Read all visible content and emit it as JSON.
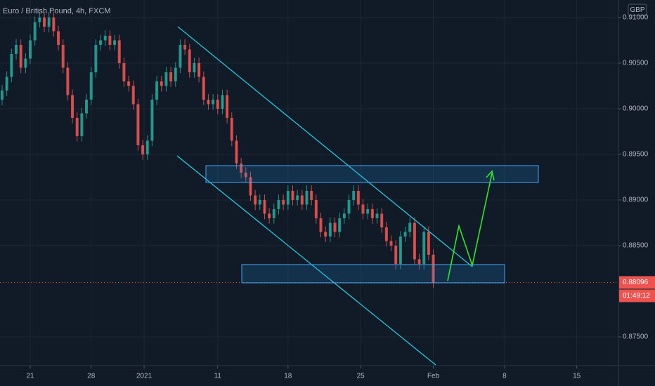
{
  "chart_data": {
    "type": "candlestick",
    "title": "Euro / British Pound, 4h, FXCM",
    "currency": "GBP",
    "countdown": "01:49:12",
    "up_color": "#26a69a",
    "down_color": "#ef5350",
    "open": [
      0.901,
      0.902,
      0.9035,
      0.906,
      0.907,
      0.9045,
      0.9055,
      0.9075,
      0.9095,
      0.91,
      0.909,
      0.91,
      0.9085,
      0.907,
      0.9045,
      0.9015,
      0.899,
      0.897,
      0.8995,
      0.901,
      0.904,
      0.907,
      0.9075,
      0.908,
      0.907,
      0.9075,
      0.905,
      0.903,
      0.9025,
      0.9005,
      0.896,
      0.895,
      0.8965,
      0.901,
      0.903,
      0.9025,
      0.904,
      0.903,
      0.9045,
      0.907,
      0.9065,
      0.904,
      0.905,
      0.9035,
      0.901,
      0.9005,
      0.901,
      0.9,
      0.9015,
      0.899,
      0.8965,
      0.894,
      0.893,
      0.8925,
      0.8905,
      0.8895,
      0.89,
      0.8885,
      0.888,
      0.889,
      0.89,
      0.8895,
      0.891,
      0.89,
      0.8905,
      0.8895,
      0.891,
      0.89,
      0.888,
      0.8865,
      0.886,
      0.8875,
      0.8865,
      0.888,
      0.8885,
      0.89,
      0.891,
      0.8895,
      0.8885,
      0.889,
      0.888,
      0.8885,
      0.887,
      0.8855,
      0.885,
      0.883,
      0.886,
      0.8865,
      0.8875,
      0.8835,
      0.883,
      0.8865,
      0.884
    ],
    "high": [
      0.9026,
      0.9041,
      0.9066,
      0.9076,
      0.9076,
      0.9061,
      0.9081,
      0.9101,
      0.9106,
      0.9106,
      0.9106,
      0.9106,
      0.9091,
      0.9076,
      0.9051,
      0.9021,
      0.8996,
      0.9001,
      0.9016,
      0.9046,
      0.9076,
      0.9081,
      0.9086,
      0.9086,
      0.9081,
      0.9081,
      0.9056,
      0.9036,
      0.9031,
      0.9011,
      0.8966,
      0.8971,
      0.9016,
      0.9036,
      0.9036,
      0.9046,
      0.9046,
      0.9051,
      0.9076,
      0.9076,
      0.9071,
      0.9056,
      0.9056,
      0.9041,
      0.9016,
      0.9016,
      0.9016,
      0.9021,
      0.9021,
      0.8996,
      0.8971,
      0.8946,
      0.8936,
      0.8931,
      0.8911,
      0.8906,
      0.8906,
      0.8891,
      0.8896,
      0.8906,
      0.8906,
      0.8916,
      0.8916,
      0.8911,
      0.8911,
      0.8916,
      0.8916,
      0.8906,
      0.8886,
      0.8871,
      0.8881,
      0.8881,
      0.8886,
      0.8891,
      0.8906,
      0.8916,
      0.8916,
      0.8901,
      0.8896,
      0.8896,
      0.8891,
      0.8891,
      0.8876,
      0.8861,
      0.8856,
      0.8866,
      0.8871,
      0.8881,
      0.8881,
      0.8841,
      0.8871,
      0.8871,
      0.8846
    ],
    "low": [
      0.9004,
      0.9014,
      0.9029,
      0.9054,
      0.9039,
      0.9039,
      0.9049,
      0.9069,
      0.9089,
      0.9084,
      0.9084,
      0.9079,
      0.9064,
      0.9039,
      0.9009,
      0.8984,
      0.8964,
      0.8964,
      0.8989,
      0.9004,
      0.9034,
      0.9064,
      0.9069,
      0.9064,
      0.9064,
      0.9044,
      0.9024,
      0.9019,
      0.8999,
      0.8954,
      0.8944,
      0.8944,
      0.8959,
      0.9004,
      0.9019,
      0.9019,
      0.9024,
      0.9024,
      0.9039,
      0.9059,
      0.9034,
      0.9034,
      0.9029,
      0.9004,
      0.8999,
      0.8999,
      0.8994,
      0.8994,
      0.8984,
      0.8959,
      0.8934,
      0.8924,
      0.8919,
      0.8899,
      0.8889,
      0.8889,
      0.8879,
      0.8874,
      0.8874,
      0.8884,
      0.8889,
      0.8889,
      0.8894,
      0.8894,
      0.8889,
      0.8889,
      0.8894,
      0.8874,
      0.8859,
      0.8854,
      0.8854,
      0.8859,
      0.8859,
      0.8874,
      0.8879,
      0.8894,
      0.8889,
      0.8879,
      0.8879,
      0.8874,
      0.8874,
      0.8864,
      0.8849,
      0.8844,
      0.8824,
      0.8824,
      0.8854,
      0.8859,
      0.8829,
      0.8824,
      0.8824,
      0.8834,
      0.88036
    ],
    "close": [
      0.902,
      0.9035,
      0.906,
      0.907,
      0.9045,
      0.9055,
      0.9075,
      0.9095,
      0.91,
      0.909,
      0.91,
      0.9085,
      0.907,
      0.9045,
      0.9015,
      0.899,
      0.897,
      0.8995,
      0.901,
      0.904,
      0.907,
      0.9075,
      0.908,
      0.907,
      0.9075,
      0.905,
      0.903,
      0.9025,
      0.9005,
      0.896,
      0.895,
      0.8965,
      0.901,
      0.903,
      0.9025,
      0.904,
      0.903,
      0.9045,
      0.907,
      0.9065,
      0.904,
      0.905,
      0.9035,
      0.901,
      0.9005,
      0.901,
      0.9,
      0.9015,
      0.899,
      0.8965,
      0.894,
      0.893,
      0.8925,
      0.8905,
      0.8895,
      0.89,
      0.8885,
      0.888,
      0.889,
      0.89,
      0.8895,
      0.891,
      0.89,
      0.8905,
      0.8895,
      0.891,
      0.89,
      0.888,
      0.8865,
      0.886,
      0.8875,
      0.8865,
      0.888,
      0.8885,
      0.89,
      0.891,
      0.8895,
      0.8885,
      0.889,
      0.888,
      0.8885,
      0.887,
      0.8855,
      0.885,
      0.883,
      0.886,
      0.8865,
      0.8875,
      0.8835,
      0.883,
      0.8865,
      0.884,
      0.88096
    ],
    "xlim": [
      -0.45,
      131.5
    ],
    "xticks": [
      {
        "value": 6,
        "label": "21"
      },
      {
        "value": 19,
        "label": "28"
      },
      {
        "value": 30.3,
        "label": "2021"
      },
      {
        "value": 46,
        "label": "11"
      },
      {
        "value": 61,
        "label": "18"
      },
      {
        "value": 76.5,
        "label": "25"
      },
      {
        "value": 92,
        "label": "Feb"
      },
      {
        "value": 107.2,
        "label": "8"
      },
      {
        "value": 122.6,
        "label": "15"
      }
    ],
    "ylim": [
      0.87192,
      0.91192
    ],
    "yticks": [
      {
        "value": 0.875,
        "label": "0.87500"
      },
      {
        "value": 0.885,
        "label": "0.88500"
      },
      {
        "value": 0.89,
        "label": "0.89000"
      },
      {
        "value": 0.895,
        "label": "0.89500"
      },
      {
        "value": 0.9,
        "label": "0.90000"
      },
      {
        "value": 0.905,
        "label": "0.90500"
      },
      {
        "value": 0.91,
        "label": "0.91000"
      }
    ],
    "grid": true
  }
}
